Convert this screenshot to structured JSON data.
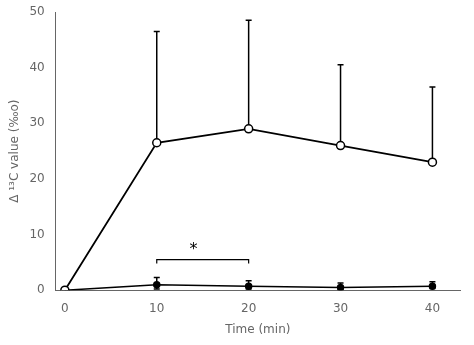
{
  "chart_data": {
    "type": "line",
    "x": [
      0,
      10,
      20,
      30,
      40
    ],
    "xlabel": "Time (min)",
    "ylabel": "Δ ¹³C value (‰o)",
    "xlim": [
      -1,
      43
    ],
    "ylim": [
      0,
      50
    ],
    "xticks": [
      0,
      10,
      20,
      30,
      40
    ],
    "yticks": [
      0,
      10,
      20,
      30,
      40,
      50
    ],
    "grid": false,
    "series": [
      {
        "color": "black",
        "marker": "open_circle",
        "values": [
          0,
          26.5,
          29.0,
          26.0,
          23.0
        ],
        "error_up": [
          0,
          20.0,
          19.5,
          14.5,
          13.5
        ],
        "error_down": [
          0,
          0,
          0,
          0,
          0
        ]
      },
      {
        "color": "black",
        "marker": "circle",
        "values": [
          0,
          1.0,
          0.7,
          0.5,
          0.7
        ],
        "error_up": [
          0,
          1.3,
          1.0,
          0.8,
          0.8
        ],
        "error_down": [
          0,
          0.8,
          0.5,
          0.4,
          0.4
        ]
      }
    ],
    "annotations": [
      {
        "type": "bracket",
        "x1": 10,
        "x2": 20,
        "y": 5.5,
        "drop": 0.7
      },
      {
        "type": "text",
        "text": "*",
        "x": 14.0,
        "y": 5.8
      }
    ]
  }
}
